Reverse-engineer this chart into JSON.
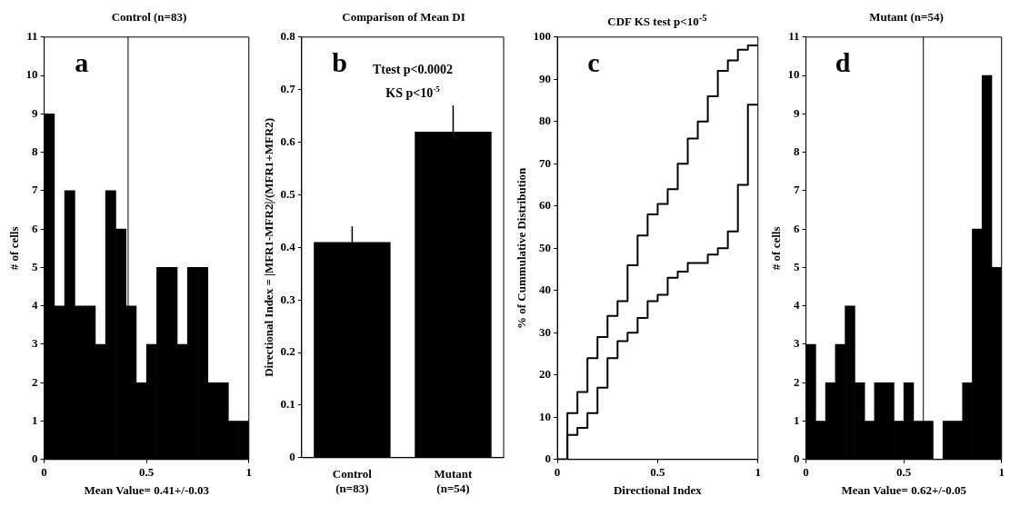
{
  "chart_data": [
    {
      "type": "histogram",
      "title": "Control (n=83)",
      "xlabel": "Mean Value= 0.41+/-0.03",
      "ylabel": "# of cells",
      "bins": [
        0,
        0.05,
        0.1,
        0.15,
        0.2,
        0.25,
        0.3,
        0.35,
        0.4,
        0.45,
        0.5,
        0.55,
        0.6,
        0.65,
        0.7,
        0.75,
        0.8,
        0.85,
        0.9,
        0.95,
        1
      ],
      "values": [
        9,
        4,
        7,
        4,
        4,
        3,
        7,
        6,
        4,
        2,
        3,
        5,
        5,
        3,
        5,
        5,
        2,
        2,
        1,
        1
      ],
      "color": "#000000",
      "xlim": [
        0,
        1
      ],
      "xticks": [
        0,
        0.5,
        1
      ],
      "ylim": [
        0,
        11
      ],
      "yticks": [
        0,
        1,
        2,
        3,
        4,
        5,
        6,
        7,
        8,
        9,
        10,
        11
      ],
      "ref_lines": [
        {
          "axis": "x",
          "value": 0.41,
          "color": "#000000"
        }
      ],
      "annotations": [
        "a"
      ]
    },
    {
      "type": "bar",
      "title": "Comparison of Mean DI",
      "ylabel": "Directional Index = |MFR1-MFR2|/(MFR1+MFR2)",
      "categories": [
        "Control\n(n=83)",
        "Mutant\n(n=54)"
      ],
      "values": [
        0.41,
        0.62
      ],
      "errors": [
        [
          0.41,
          0.44
        ],
        [
          0.62,
          0.67
        ]
      ],
      "color": "#000000",
      "ylim": [
        0,
        0.8
      ],
      "yticks": [
        0,
        0.1,
        0.2,
        0.3,
        0.4,
        0.5,
        0.6,
        0.7,
        0.8
      ],
      "annotations": [
        "b",
        "Ttest p<0.0002",
        "KS p<10$^{-5}$"
      ]
    },
    {
      "type": "step",
      "title": "CDF KS test p<10$^{-5}$",
      "xlabel": "Directional Index",
      "ylabel": "% of Cummulative Distribution",
      "x": [
        0,
        0.05,
        0.1,
        0.15,
        0.2,
        0.25,
        0.3,
        0.35,
        0.4,
        0.45,
        0.5,
        0.55,
        0.6,
        0.65,
        0.7,
        0.75,
        0.8,
        0.85,
        0.9,
        0.95,
        1
      ],
      "series": [
        {
          "color": "#000000",
          "values": [
            0,
            11,
            16,
            24,
            29,
            34,
            37.5,
            46,
            53,
            58,
            60.5,
            64,
            70,
            76,
            80,
            86,
            92,
            94.5,
            97,
            98,
            98
          ]
        },
        {
          "color": "#000000",
          "values": [
            0,
            5.8,
            7.5,
            11,
            17,
            24,
            28,
            30,
            33.5,
            37.5,
            39,
            43,
            44.5,
            46.5,
            46.5,
            48.5,
            50,
            54,
            65,
            84,
            84
          ]
        }
      ],
      "xlim": [
        0,
        1
      ],
      "xticks": [
        0,
        0.5,
        1
      ],
      "ylim": [
        0,
        100
      ],
      "yticks": [
        0,
        10,
        20,
        30,
        40,
        50,
        60,
        70,
        80,
        90,
        100
      ],
      "annotations": [
        "c"
      ]
    },
    {
      "type": "histogram",
      "title": "Mutant  (n=54)",
      "xlabel": "Mean Value= 0.62+/-0.05",
      "ylabel": "# of cells",
      "bins": [
        0,
        0.05,
        0.1,
        0.15,
        0.2,
        0.25,
        0.3,
        0.35,
        0.4,
        0.45,
        0.5,
        0.55,
        0.6,
        0.65,
        0.7,
        0.75,
        0.8,
        0.85,
        0.9,
        0.95,
        1
      ],
      "values": [
        3,
        1,
        2,
        3,
        4,
        2,
        1,
        2,
        2,
        1,
        2,
        1,
        1,
        0,
        1,
        1,
        2,
        6,
        10,
        5
      ],
      "color": "#000000",
      "xlim": [
        0,
        1
      ],
      "xticks": [
        0,
        0.5,
        1
      ],
      "ylim": [
        0,
        11
      ],
      "yticks": [
        0,
        1,
        2,
        3,
        4,
        5,
        6,
        7,
        8,
        9,
        10,
        11
      ],
      "ref_lines": [
        {
          "axis": "x",
          "value": 0.6,
          "color": "#000000"
        }
      ],
      "annotations": [
        "d"
      ]
    }
  ]
}
